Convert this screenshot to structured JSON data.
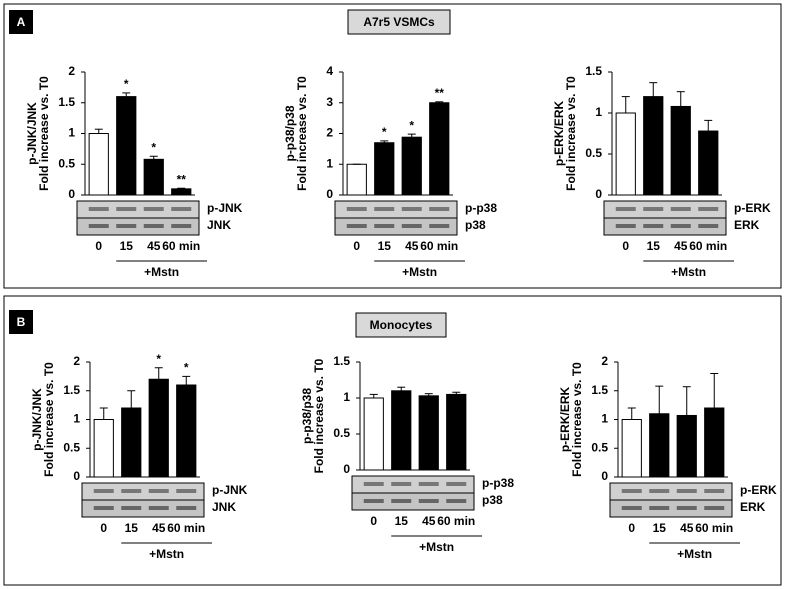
{
  "panels": [
    {
      "label": "A",
      "title": "A7r5  VSMCs"
    },
    {
      "label": "B",
      "title": "Monocytes"
    }
  ],
  "chart_data": [
    {
      "type": "bar",
      "ylabel": "p-JNK/JNK",
      "ylabel2": "Fold increase vs. T0",
      "categories": [
        "0",
        "15",
        "45",
        "60 min"
      ],
      "values": [
        1,
        1.6,
        0.58,
        0.1
      ],
      "errors": [
        0.07,
        0.06,
        0.05,
        0.01
      ],
      "annotations": [
        null,
        "*",
        "*",
        "**"
      ],
      "bar_colors": [
        "#ffffff",
        "#000000",
        "#000000",
        "#000000"
      ],
      "ylim": [
        0,
        2
      ],
      "yticks": [
        0,
        0.5,
        1,
        1.5,
        2
      ],
      "blot_labels": [
        "p-JNK",
        "JNK"
      ],
      "treatment": "+Mstn"
    },
    {
      "type": "bar",
      "ylabel": "p-p38/p38",
      "ylabel2": "Fold increase vs. T0",
      "categories": [
        "0",
        "15",
        "45",
        "60 min"
      ],
      "values": [
        1,
        1.7,
        1.88,
        3.0
      ],
      "errors": [
        0,
        0.06,
        0.1,
        0.03
      ],
      "annotations": [
        null,
        "*",
        "*",
        "**"
      ],
      "bar_colors": [
        "#ffffff",
        "#000000",
        "#000000",
        "#000000"
      ],
      "ylim": [
        0,
        4
      ],
      "yticks": [
        0,
        1,
        2,
        3,
        4
      ],
      "blot_labels": [
        "p-p38",
        "p38"
      ],
      "treatment": "+Mstn"
    },
    {
      "type": "bar",
      "ylabel": "p-ERK/ERK",
      "ylabel2": "Fold increase vs. T0",
      "categories": [
        "0",
        "15",
        "45",
        "60 min"
      ],
      "values": [
        1,
        1.2,
        1.08,
        0.78
      ],
      "errors": [
        0.2,
        0.17,
        0.18,
        0.13
      ],
      "annotations": [
        null,
        null,
        null,
        null
      ],
      "bar_colors": [
        "#ffffff",
        "#000000",
        "#000000",
        "#000000"
      ],
      "ylim": [
        0,
        1.5
      ],
      "yticks": [
        0,
        0.5,
        1,
        1.5
      ],
      "blot_labels": [
        "p-ERK",
        "ERK"
      ],
      "treatment": "+Mstn"
    },
    {
      "type": "bar",
      "ylabel": "p-JNK/JNK",
      "ylabel2": "Fold increase vs. T0",
      "categories": [
        "0",
        "15",
        "45",
        "60 min"
      ],
      "values": [
        1,
        1.2,
        1.7,
        1.6
      ],
      "errors": [
        0.2,
        0.3,
        0.2,
        0.15
      ],
      "annotations": [
        null,
        null,
        "*",
        "*"
      ],
      "bar_colors": [
        "#ffffff",
        "#000000",
        "#000000",
        "#000000"
      ],
      "ylim": [
        0,
        2
      ],
      "yticks": [
        0,
        0.5,
        1,
        1.5,
        2
      ],
      "blot_labels": [
        "p-JNK",
        "JNK"
      ],
      "treatment": "+Mstn"
    },
    {
      "type": "bar",
      "ylabel": "p-p38/p38",
      "ylabel2": "Fold increase vs. T0",
      "categories": [
        "0",
        "15",
        "45",
        "60 min"
      ],
      "values": [
        1,
        1.1,
        1.03,
        1.05
      ],
      "errors": [
        0.05,
        0.05,
        0.03,
        0.03
      ],
      "annotations": [
        null,
        null,
        null,
        null
      ],
      "bar_colors": [
        "#ffffff",
        "#000000",
        "#000000",
        "#000000"
      ],
      "ylim": [
        0,
        1.5
      ],
      "yticks": [
        0,
        0.5,
        1,
        1.5
      ],
      "blot_labels": [
        "p-p38",
        "p38"
      ],
      "treatment": "+Mstn"
    },
    {
      "type": "bar",
      "ylabel": "p-ERK/ERK",
      "ylabel2": "Fold increase vs. T0",
      "categories": [
        "0",
        "15",
        "45",
        "60 min"
      ],
      "values": [
        1,
        1.1,
        1.07,
        1.2
      ],
      "errors": [
        0.2,
        0.48,
        0.5,
        0.6
      ],
      "annotations": [
        null,
        null,
        null,
        null
      ],
      "bar_colors": [
        "#ffffff",
        "#000000",
        "#000000",
        "#000000"
      ],
      "ylim": [
        0,
        2
      ],
      "yticks": [
        0,
        0.5,
        1,
        1.5,
        2
      ],
      "blot_labels": [
        "p-ERK",
        "ERK"
      ],
      "treatment": "+Mstn"
    }
  ]
}
